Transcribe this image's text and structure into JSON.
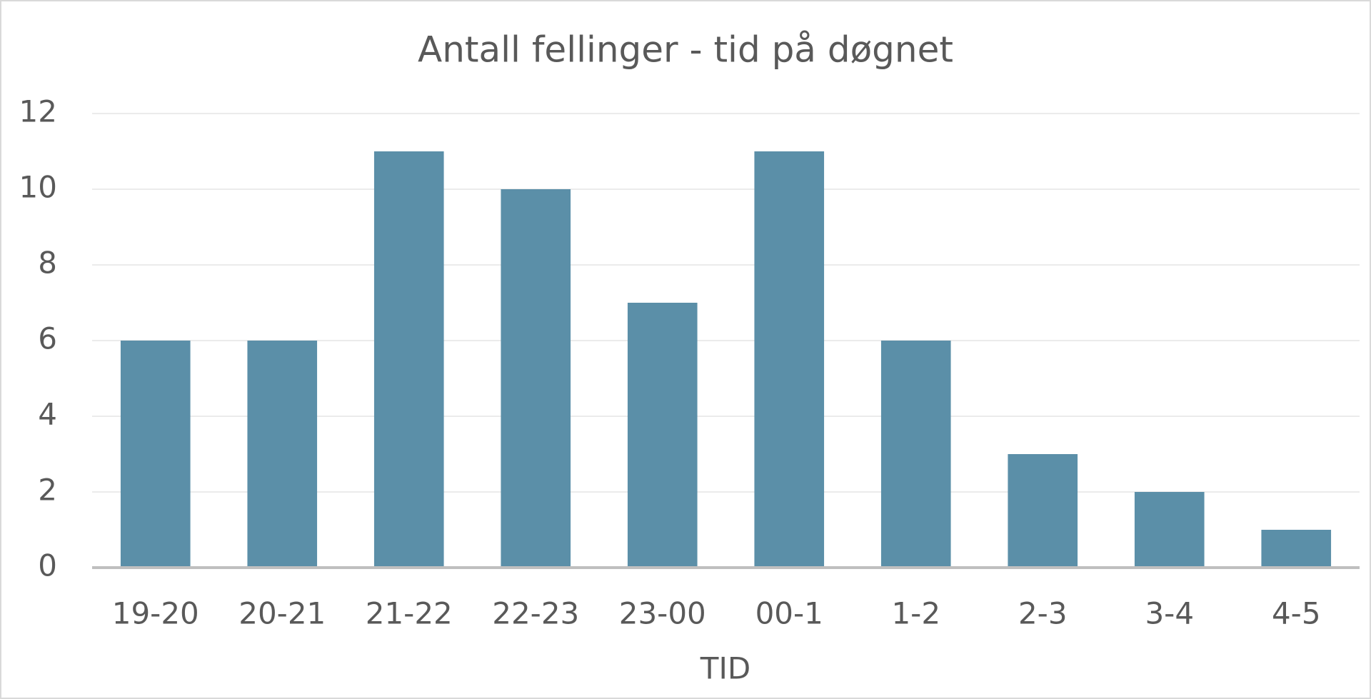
{
  "chart_data": {
    "type": "bar",
    "title": "Antall fellinger - tid på døgnet",
    "xlabel": "TID",
    "categories": [
      "19-20",
      "20-21",
      "21-22",
      "22-23",
      "23-00",
      "00-1",
      "1-2",
      "2-3",
      "3-4",
      "4-5"
    ],
    "values": [
      6,
      6,
      11,
      10,
      7,
      11,
      6,
      3,
      2,
      1
    ],
    "color": "#5b8fa8",
    "ylim": [
      0,
      12
    ],
    "yticks": [
      0,
      2,
      4,
      6,
      8,
      10,
      12
    ],
    "grid": true
  }
}
